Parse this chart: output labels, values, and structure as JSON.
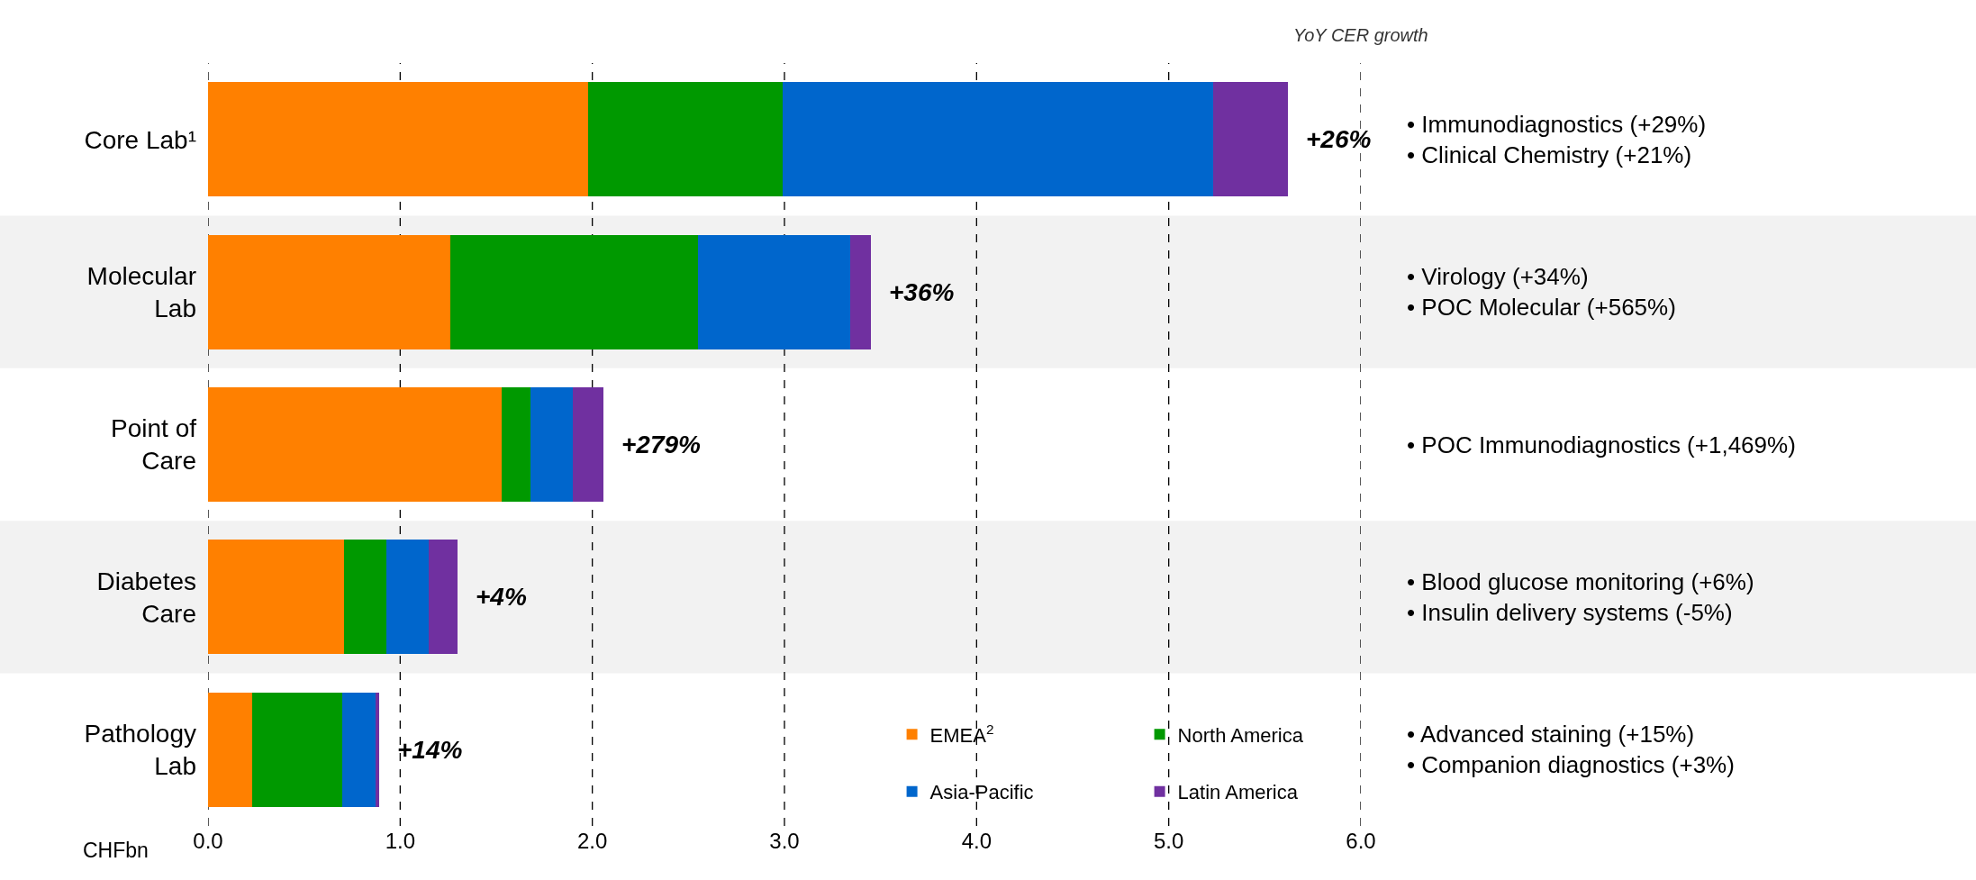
{
  "chart_data": {
    "type": "bar",
    "orientation": "horizontal",
    "stacked": true,
    "categories": [
      "Core Lab¹",
      "Molecular\nLab",
      "Point of\nCare",
      "Diabetes\nCare",
      "Pathology\nLab"
    ],
    "series": [
      {
        "name": "EMEA$^{2}$",
        "color": "#ff8000",
        "values": [
          1.98,
          1.26,
          1.53,
          0.71,
          0.23
        ]
      },
      {
        "name": "North America",
        "color": "#009900",
        "values": [
          1.01,
          1.29,
          0.15,
          0.22,
          0.47
        ]
      },
      {
        "name": "Asia-Pacific",
        "color": "#0066cc",
        "values": [
          2.24,
          0.79,
          0.22,
          0.22,
          0.17
        ]
      },
      {
        "name": "Latin America",
        "color": "#7030a0",
        "values": [
          0.39,
          0.11,
          0.16,
          0.15,
          0.02
        ]
      }
    ],
    "xlabel": "CHFbn",
    "xlim": [
      0,
      6
    ],
    "xticks": [
      {
        "value": 0,
        "label": "0.0"
      },
      {
        "value": 1,
        "label": "1.0"
      },
      {
        "value": 2,
        "label": "2.0"
      },
      {
        "value": 3,
        "label": "3.0"
      },
      {
        "value": 4,
        "label": "4.0"
      },
      {
        "value": 5,
        "label": "5.0"
      },
      {
        "value": 6,
        "label": "6.0"
      }
    ],
    "grid": "x",
    "line_style": "dashed",
    "legend": "bottom right",
    "bands": [
      {
        "axis": "y",
        "from": "Molecular\nLab",
        "to": "Molecular\nLab",
        "color": "#f2f2f2"
      },
      {
        "axis": "y",
        "from": "Diabetes\nCare",
        "to": "Diabetes\nCare",
        "color": "#f2f2f2"
      }
    ],
    "annotations": [
      "YoY CER growth",
      "+26%",
      "+36%",
      "+279%",
      "+4%",
      "+14%",
      "• Immunodiagnostics (+29%)\n• Clinical Chemistry (+21%)",
      "• Virology (+34%)\n• POC Molecular (+565%)",
      "• POC Immunodiagnostics (+1,469%)",
      "• Blood glucose monitoring (+6%)\n• Insulin delivery systems (-5%)",
      "• Advanced staining (+15%)\n• Companion diagnostics (+3%)"
    ]
  }
}
